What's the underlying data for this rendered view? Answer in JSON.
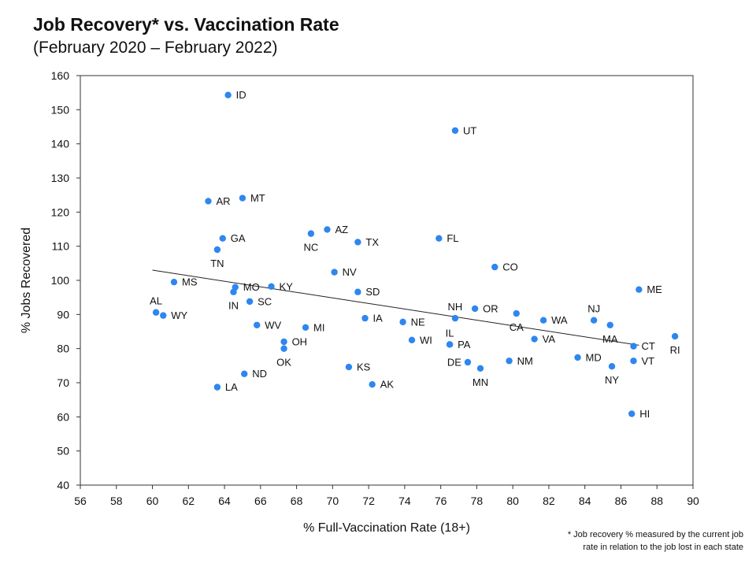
{
  "title": "Job Recovery* vs. Vaccination Rate",
  "subtitle": "(February 2020 – February 2022)",
  "footnote_lines": [
    "* Job recovery % measured by the current job",
    "rate in relation to the job lost in each state"
  ],
  "colors": {
    "point": "#2e86f0",
    "trendline": "#222222",
    "frame": "#333333"
  },
  "chart_data": {
    "type": "scatter",
    "title": "Job Recovery* vs. Vaccination Rate",
    "subtitle": "(February 2020 – February 2022)",
    "xlabel": "% Full-Vaccination Rate (18+)",
    "ylabel": "% Jobs Recovered",
    "xlim": [
      56,
      90
    ],
    "ylim": [
      40,
      160
    ],
    "xticks": [
      56,
      58,
      60,
      62,
      64,
      66,
      68,
      70,
      72,
      74,
      76,
      78,
      80,
      82,
      84,
      86,
      88,
      90
    ],
    "yticks": [
      40,
      50,
      60,
      70,
      80,
      90,
      100,
      110,
      120,
      130,
      140,
      150,
      160
    ],
    "grid": false,
    "trendline": {
      "x": [
        60,
        87
      ],
      "y": [
        103,
        81
      ]
    },
    "points": [
      {
        "label": "ID",
        "x": 64.2,
        "y": 154.3,
        "pos": "right"
      },
      {
        "label": "UT",
        "x": 76.8,
        "y": 143.9,
        "pos": "right"
      },
      {
        "label": "AR",
        "x": 63.1,
        "y": 123.2,
        "pos": "right"
      },
      {
        "label": "MT",
        "x": 65.0,
        "y": 124.1,
        "pos": "right"
      },
      {
        "label": "AZ",
        "x": 69.7,
        "y": 114.9,
        "pos": "right"
      },
      {
        "label": "NC",
        "x": 68.8,
        "y": 113.7,
        "pos": "below"
      },
      {
        "label": "TX",
        "x": 71.4,
        "y": 111.2,
        "pos": "right"
      },
      {
        "label": "FL",
        "x": 75.9,
        "y": 112.3,
        "pos": "right"
      },
      {
        "label": "GA",
        "x": 63.9,
        "y": 112.3,
        "pos": "right"
      },
      {
        "label": "TN",
        "x": 63.6,
        "y": 109.0,
        "pos": "below"
      },
      {
        "label": "CO",
        "x": 79.0,
        "y": 103.9,
        "pos": "right"
      },
      {
        "label": "NV",
        "x": 70.1,
        "y": 102.4,
        "pos": "right"
      },
      {
        "label": "ME",
        "x": 87.0,
        "y": 97.3,
        "pos": "right"
      },
      {
        "label": "MS",
        "x": 61.2,
        "y": 99.5,
        "pos": "right"
      },
      {
        "label": "MO",
        "x": 64.6,
        "y": 98.0,
        "pos": "right"
      },
      {
        "label": "KY",
        "x": 66.6,
        "y": 98.2,
        "pos": "right"
      },
      {
        "label": "IN",
        "x": 64.5,
        "y": 96.6,
        "pos": "below"
      },
      {
        "label": "SD",
        "x": 71.4,
        "y": 96.6,
        "pos": "right"
      },
      {
        "label": "SC",
        "x": 65.4,
        "y": 93.8,
        "pos": "right"
      },
      {
        "label": "AL",
        "x": 60.2,
        "y": 90.6,
        "pos": "above"
      },
      {
        "label": "WY",
        "x": 60.6,
        "y": 89.7,
        "pos": "right"
      },
      {
        "label": "OR",
        "x": 77.9,
        "y": 91.7,
        "pos": "right"
      },
      {
        "label": "NH",
        "x": 76.8,
        "y": 88.9,
        "pos": "above"
      },
      {
        "label": "CA",
        "x": 80.2,
        "y": 90.3,
        "pos": "below"
      },
      {
        "label": "NJ",
        "x": 84.5,
        "y": 88.3,
        "pos": "above"
      },
      {
        "label": "IA",
        "x": 71.8,
        "y": 88.9,
        "pos": "right"
      },
      {
        "label": "NE",
        "x": 73.9,
        "y": 87.8,
        "pos": "right"
      },
      {
        "label": "WA",
        "x": 81.7,
        "y": 88.3,
        "pos": "right"
      },
      {
        "label": "WV",
        "x": 65.8,
        "y": 86.9,
        "pos": "right"
      },
      {
        "label": "MI",
        "x": 68.5,
        "y": 86.2,
        "pos": "right"
      },
      {
        "label": "MA",
        "x": 85.4,
        "y": 86.9,
        "pos": "below"
      },
      {
        "label": "RI",
        "x": 89.0,
        "y": 83.6,
        "pos": "below"
      },
      {
        "label": "VA",
        "x": 81.2,
        "y": 82.8,
        "pos": "right"
      },
      {
        "label": "WI",
        "x": 74.4,
        "y": 82.5,
        "pos": "right"
      },
      {
        "label": "OH",
        "x": 67.3,
        "y": 82.0,
        "pos": "right"
      },
      {
        "label": "IL",
        "x": 76.5,
        "y": 81.2,
        "pos": "above"
      },
      {
        "label": "PA",
        "x": 76.5,
        "y": 81.2,
        "pos": "right"
      },
      {
        "label": "CT",
        "x": 86.7,
        "y": 80.7,
        "pos": "right"
      },
      {
        "label": "OK",
        "x": 67.3,
        "y": 80.0,
        "pos": "below"
      },
      {
        "label": "MD",
        "x": 83.6,
        "y": 77.4,
        "pos": "right"
      },
      {
        "label": "NM",
        "x": 79.8,
        "y": 76.4,
        "pos": "right"
      },
      {
        "label": "VT",
        "x": 86.7,
        "y": 76.4,
        "pos": "right"
      },
      {
        "label": "DE",
        "x": 77.5,
        "y": 76.0,
        "pos": "left"
      },
      {
        "label": "NY",
        "x": 85.5,
        "y": 74.8,
        "pos": "below"
      },
      {
        "label": "KS",
        "x": 70.9,
        "y": 74.6,
        "pos": "right"
      },
      {
        "label": "MN",
        "x": 78.2,
        "y": 74.2,
        "pos": "below"
      },
      {
        "label": "ND",
        "x": 65.1,
        "y": 72.6,
        "pos": "right"
      },
      {
        "label": "AK",
        "x": 72.2,
        "y": 69.5,
        "pos": "right"
      },
      {
        "label": "LA",
        "x": 63.6,
        "y": 68.7,
        "pos": "right"
      },
      {
        "label": "HI",
        "x": 86.6,
        "y": 60.9,
        "pos": "right"
      }
    ]
  }
}
